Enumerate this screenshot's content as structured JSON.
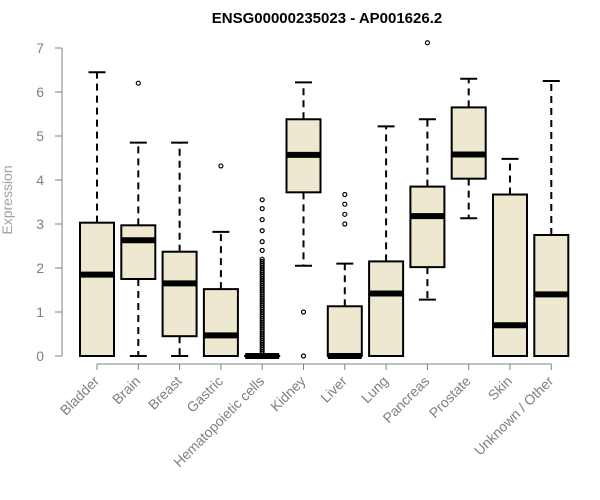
{
  "chart_data": {
    "type": "boxplot",
    "title": "ENSG00000235023 - AP001626.2",
    "xlabel": "",
    "ylabel": "Expression",
    "ylim": [
      0,
      7
    ],
    "yticks": [
      0,
      1,
      2,
      3,
      4,
      5,
      6,
      7
    ],
    "box_fill": "#EEE8D0",
    "axis_color": "#808080",
    "categories": [
      "Bladder",
      "Brain",
      "Breast",
      "Gastric",
      "Hematopoietic cells",
      "Kidney",
      "Liver",
      "Lung",
      "Pancreas",
      "Prostate",
      "Skin",
      "Unknown / Other"
    ],
    "series": [
      {
        "name": "Bladder",
        "whisker_low": 0,
        "q1": 0,
        "median": 1.85,
        "q3": 3.03,
        "whisker_high": 6.45,
        "outliers": []
      },
      {
        "name": "Brain",
        "whisker_low": 0,
        "q1": 1.75,
        "median": 2.63,
        "q3": 2.97,
        "whisker_high": 4.85,
        "outliers": [
          6.2
        ]
      },
      {
        "name": "Breast",
        "whisker_low": 0,
        "q1": 0.45,
        "median": 1.65,
        "q3": 2.37,
        "whisker_high": 4.85,
        "outliers": []
      },
      {
        "name": "Gastric",
        "whisker_low": 0,
        "q1": 0,
        "median": 0.47,
        "q3": 1.52,
        "whisker_high": 2.82,
        "outliers": [
          4.32
        ]
      },
      {
        "name": "Hematopoietic cells",
        "whisker_low": 0,
        "q1": 0,
        "median": 0,
        "q3": 0,
        "whisker_high": 0,
        "outliers": [
          0.05,
          0.1,
          0.15,
          0.2,
          0.25,
          0.3,
          0.35,
          0.4,
          0.45,
          0.5,
          0.55,
          0.6,
          0.65,
          0.7,
          0.75,
          0.8,
          0.85,
          0.9,
          0.95,
          1.0,
          1.05,
          1.1,
          1.15,
          1.2,
          1.25,
          1.3,
          1.35,
          1.4,
          1.45,
          1.5,
          1.55,
          1.6,
          1.65,
          1.7,
          1.75,
          1.8,
          1.85,
          1.9,
          1.95,
          2.0,
          2.05,
          2.1,
          2.15,
          2.2,
          2.4,
          2.6,
          2.85,
          3.1,
          3.35,
          3.55
        ]
      },
      {
        "name": "Kidney",
        "whisker_low": 2.05,
        "q1": 3.72,
        "median": 4.57,
        "q3": 5.38,
        "whisker_high": 6.22,
        "outliers": [
          1.0,
          0.0
        ]
      },
      {
        "name": "Liver",
        "whisker_low": 0,
        "q1": 0,
        "median": 0,
        "q3": 1.13,
        "whisker_high": 2.1,
        "outliers": [
          3.0,
          3.22,
          3.45,
          3.67
        ]
      },
      {
        "name": "Lung",
        "whisker_low": 0,
        "q1": 0,
        "median": 1.42,
        "q3": 2.15,
        "whisker_high": 5.22,
        "outliers": []
      },
      {
        "name": "Pancreas",
        "whisker_low": 1.28,
        "q1": 2.02,
        "median": 3.18,
        "q3": 3.85,
        "whisker_high": 5.38,
        "outliers": [
          7.12
        ]
      },
      {
        "name": "Prostate",
        "whisker_low": 3.13,
        "q1": 4.03,
        "median": 4.58,
        "q3": 5.65,
        "whisker_high": 6.3,
        "outliers": []
      },
      {
        "name": "Skin",
        "whisker_low": 0,
        "q1": 0,
        "median": 0.7,
        "q3": 3.67,
        "whisker_high": 4.48,
        "outliers": []
      },
      {
        "name": "Unknown / Other",
        "whisker_low": 0,
        "q1": 0,
        "median": 1.4,
        "q3": 2.75,
        "whisker_high": 6.25,
        "outliers": []
      }
    ]
  }
}
